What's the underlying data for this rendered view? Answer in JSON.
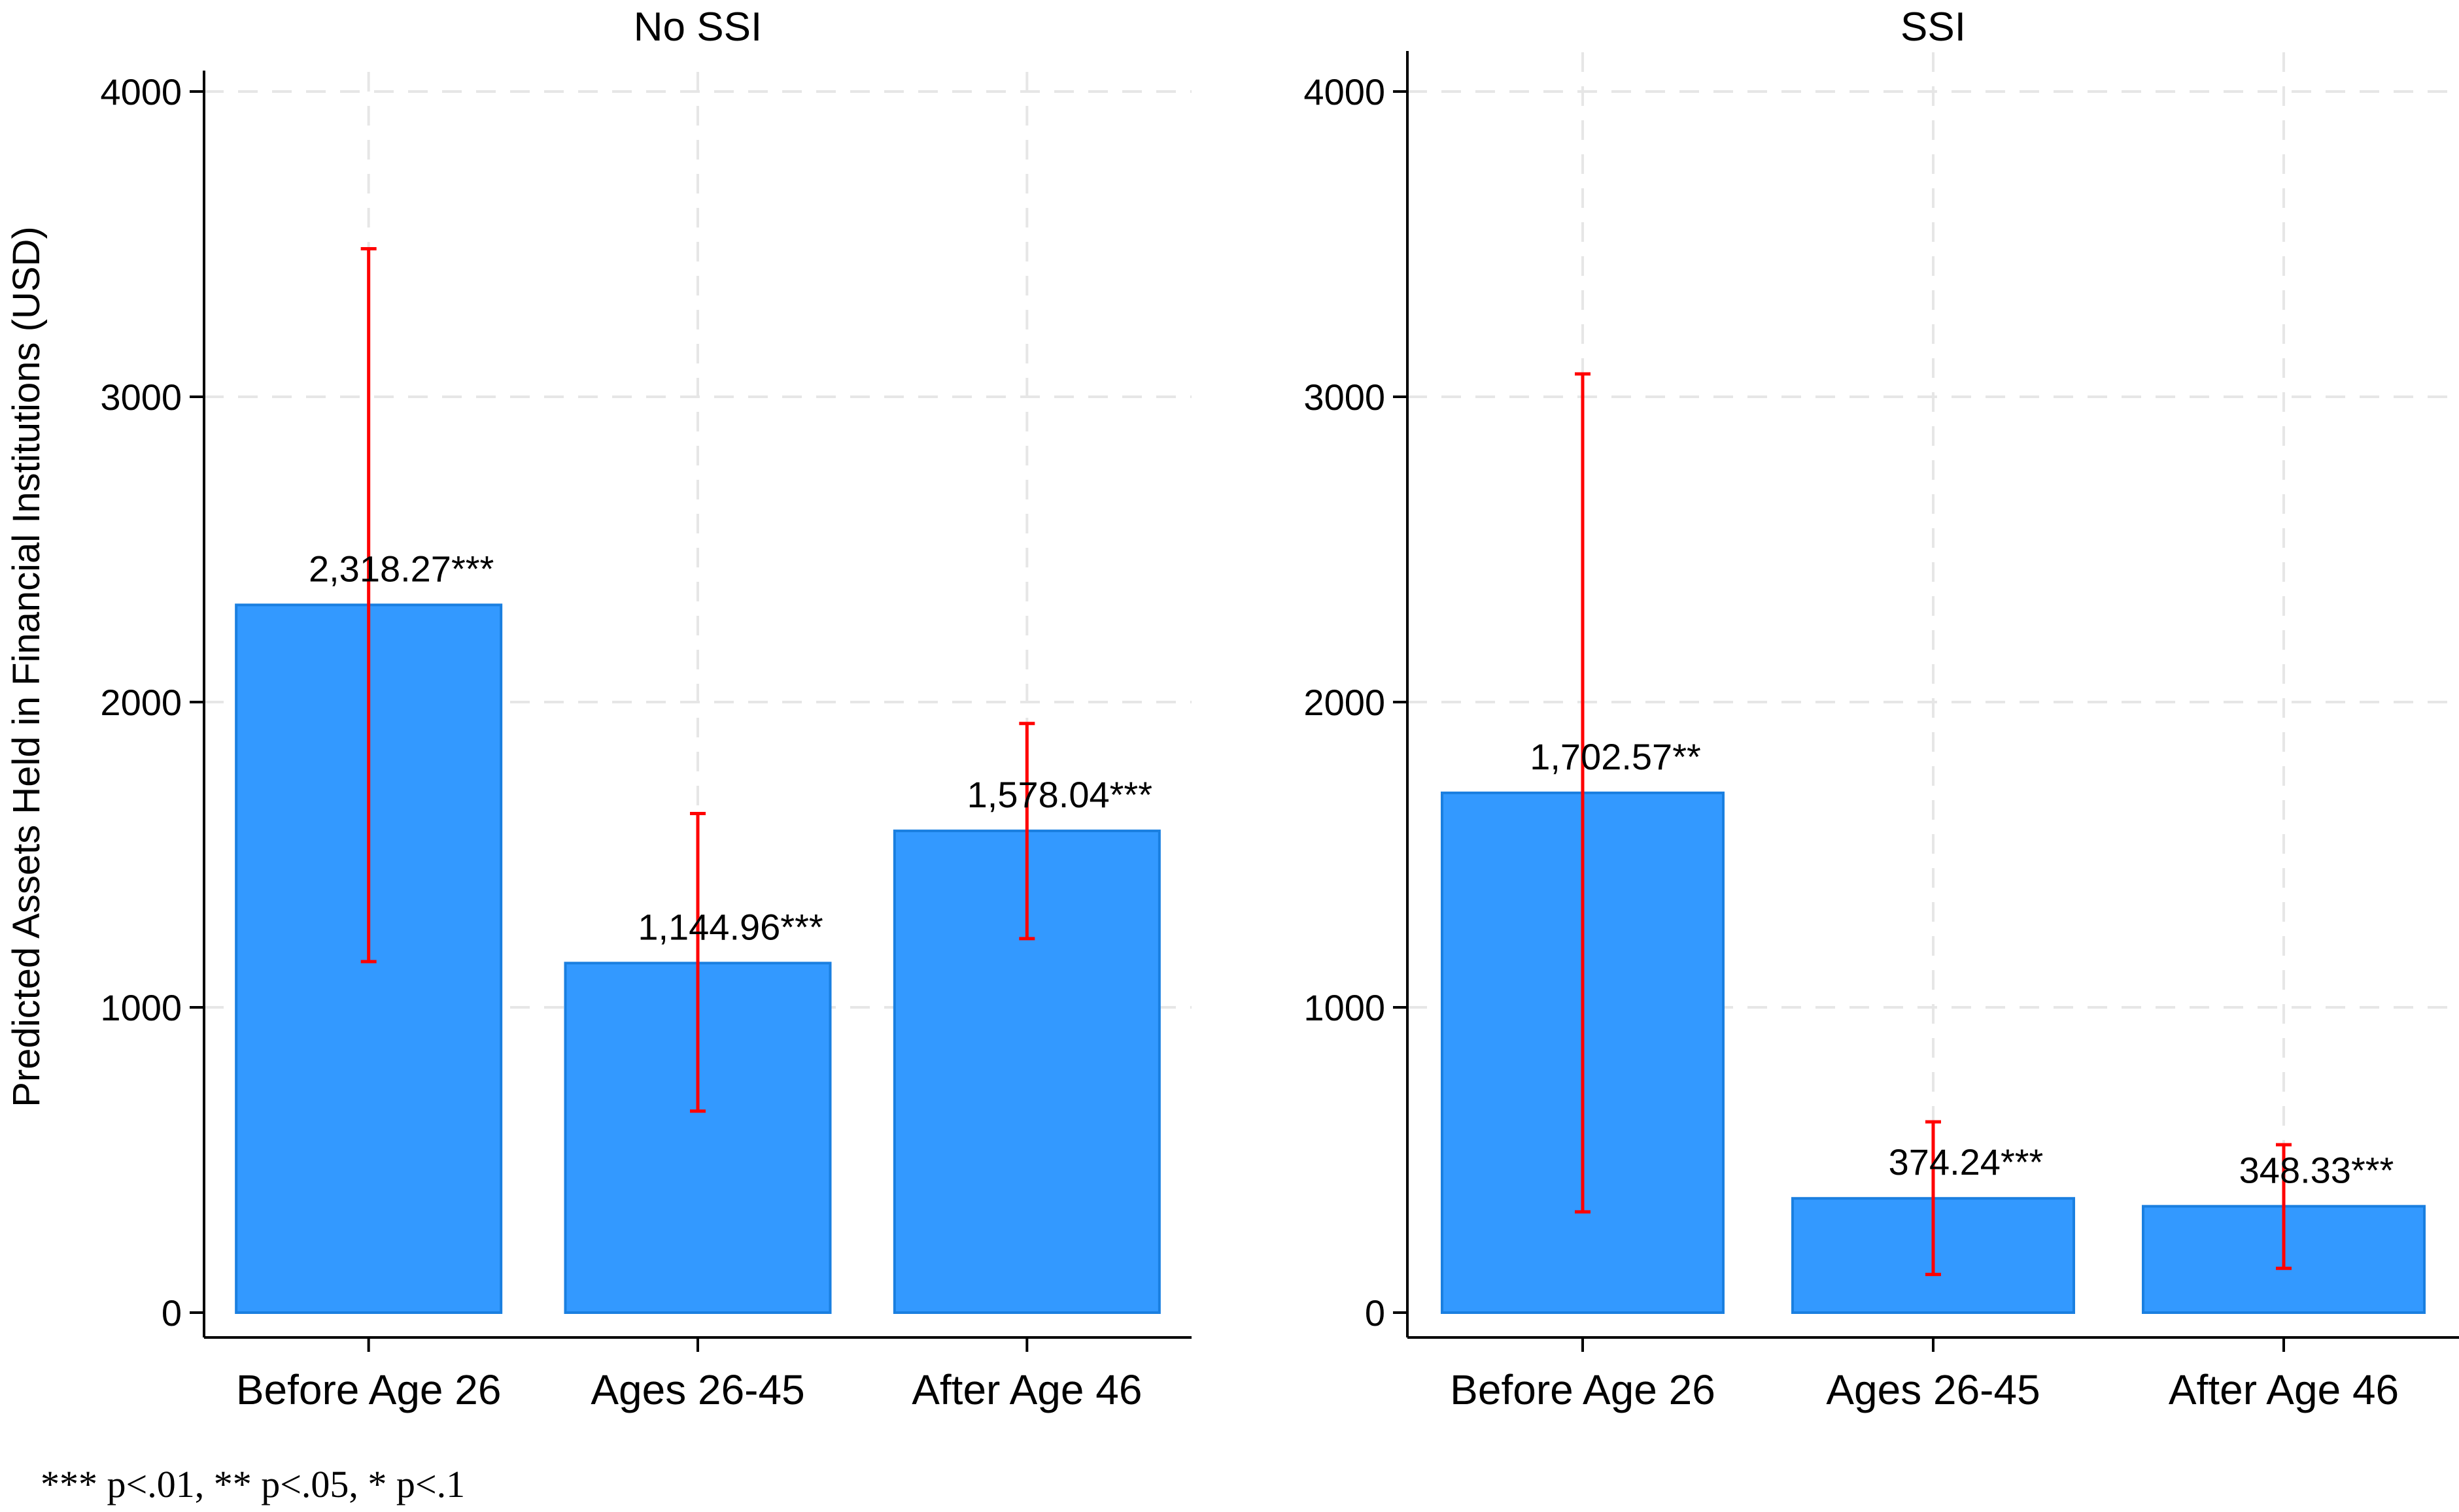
{
  "figure": {
    "ylabel": "Predicted Assets Held in Financial Institutions (USD)",
    "footnote": "*** p<.01, ** p<.05, * p<.1"
  },
  "chart_data": [
    {
      "type": "bar",
      "title": "No SSI",
      "categories": [
        "Before Age 26",
        "Ages 26-45",
        "After Age 46"
      ],
      "values": [
        2318.27,
        1144.96,
        1578.04
      ],
      "labels": [
        "2,318.27***",
        "1,144.96***",
        "1,578.04***"
      ],
      "ci_low": [
        1150,
        660,
        1225
      ],
      "ci_high": [
        3485,
        1635,
        1930
      ],
      "ylim": [
        0,
        4000
      ],
      "yticks": [
        0,
        1000,
        2000,
        3000,
        4000
      ],
      "grid": true,
      "bar_color": "#3399ff",
      "bar_edge_color": "#1a7fe0",
      "error_color": "#ff0000"
    },
    {
      "type": "bar",
      "title": "SSI",
      "categories": [
        "Before Age 26",
        "Ages 26-45",
        "After Age 46"
      ],
      "values": [
        1702.57,
        374.24,
        348.33
      ],
      "labels": [
        "1,702.57**",
        "374.24***",
        "348.33***"
      ],
      "ci_low": [
        330,
        125,
        145
      ],
      "ci_high": [
        3075,
        625,
        550
      ],
      "ylim": [
        0,
        4000
      ],
      "yticks": [
        0,
        1000,
        2000,
        3000,
        4000
      ],
      "grid": true,
      "bar_color": "#3399ff",
      "bar_edge_color": "#1a7fe0",
      "error_color": "#ff0000"
    }
  ]
}
